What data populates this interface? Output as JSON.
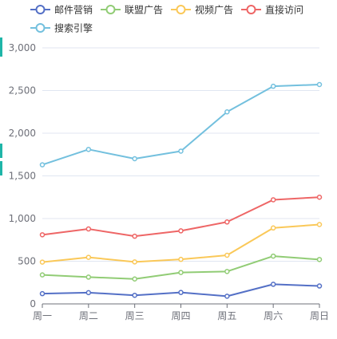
{
  "chart_data": {
    "type": "line",
    "title": "",
    "xlabel": "",
    "ylabel": "",
    "categories": [
      "周一",
      "周二",
      "周三",
      "周四",
      "周五",
      "周六",
      "周日"
    ],
    "ylim": [
      0,
      3000
    ],
    "yticks": [
      0,
      500,
      1000,
      1500,
      2000,
      2500,
      3000
    ],
    "ytick_labels": [
      "0",
      "500",
      "1,000",
      "1,500",
      "2,000",
      "2,500",
      "3,000"
    ],
    "grid": true,
    "legend_position": "top-left",
    "series": [
      {
        "name": "邮件营销",
        "color": "#5470c6",
        "values": [
          120,
          132,
          101,
          134,
          90,
          230,
          210
        ]
      },
      {
        "name": "联盟广告",
        "color": "#91cc75",
        "values": [
          340,
          314,
          292,
          368,
          380,
          560,
          520
        ]
      },
      {
        "name": "视频广告",
        "color": "#fac858",
        "values": [
          490,
          546,
          492,
          522,
          570,
          890,
          930
        ]
      },
      {
        "name": "直接访问",
        "color": "#ee6666",
        "values": [
          810,
          878,
          793,
          856,
          960,
          1220,
          1250
        ]
      },
      {
        "name": "搜索引擎",
        "color": "#73c0de",
        "values": [
          1630,
          1810,
          1701,
          1790,
          2250,
          2550,
          2570
        ]
      }
    ]
  }
}
